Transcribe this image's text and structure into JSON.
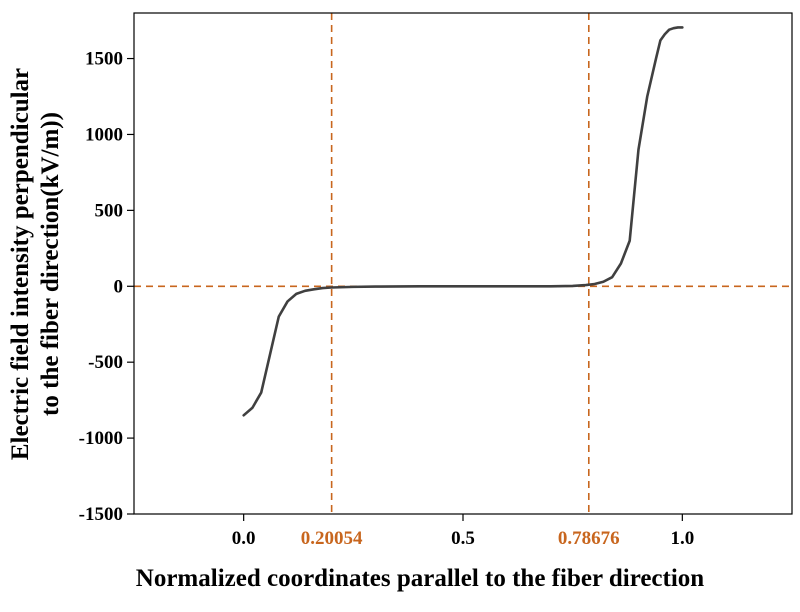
{
  "chart_data": {
    "type": "line",
    "title": "",
    "xlabel": "Normalized coordinates parallel to the fiber direction",
    "ylabel_lines": [
      "Electric field intensity perpendicular",
      "to the fiber direction(kV/m))"
    ],
    "xlim": [
      -0.25,
      1.25
    ],
    "ylim": [
      -1500,
      1800
    ],
    "x_ticks": [
      0.0,
      0.5,
      1.0
    ],
    "x_tick_labels": [
      "0.0",
      "0.5",
      "1.0"
    ],
    "y_ticks": [
      -1500,
      -1000,
      -500,
      0,
      500,
      1000,
      1500
    ],
    "y_tick_labels": [
      "-1500",
      "-1000",
      "-500",
      "0",
      "500",
      "1000",
      "1500"
    ],
    "grid": false,
    "line_color": "#404040",
    "reference_color": "#C8661E",
    "reference_lines": {
      "vertical": [
        {
          "x": 0.20054,
          "label": "0.20054"
        },
        {
          "x": 0.78676,
          "label": "0.78676"
        }
      ],
      "horizontal": [
        {
          "y": 0
        }
      ]
    },
    "series": [
      {
        "x": [
          0.0,
          0.02,
          0.04,
          0.06,
          0.08,
          0.1,
          0.12,
          0.14,
          0.16,
          0.18,
          0.2,
          0.25,
          0.3,
          0.4,
          0.5,
          0.6,
          0.7,
          0.75,
          0.78,
          0.8,
          0.82,
          0.84,
          0.86,
          0.88,
          0.89,
          0.9,
          0.92,
          0.94,
          0.95,
          0.96,
          0.97,
          0.98,
          0.99,
          1.0
        ],
        "y": [
          -850,
          -800,
          -700,
          -450,
          -200,
          -100,
          -50,
          -30,
          -20,
          -12,
          -8,
          -4,
          -2,
          0,
          0,
          0,
          0,
          2,
          8,
          15,
          30,
          60,
          150,
          300,
          600,
          900,
          1250,
          1500,
          1620,
          1660,
          1690,
          1700,
          1705,
          1705
        ]
      }
    ]
  }
}
